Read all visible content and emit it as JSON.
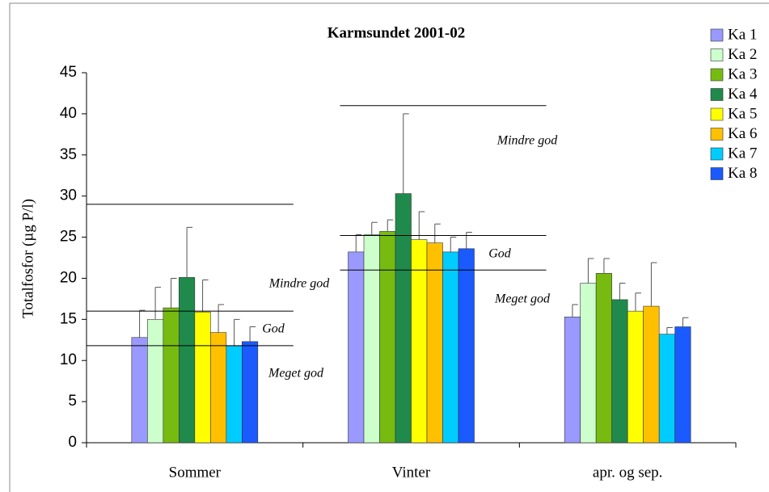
{
  "chart_data": {
    "type": "bar",
    "title": "Karmsundet 2001-02",
    "ylabel": "Totalfosfor (µg P/l)",
    "categories": [
      "Sommer",
      "Vinter",
      "apr. og sep."
    ],
    "ylim": [
      0,
      45
    ],
    "yticks": [
      0,
      5,
      10,
      15,
      20,
      25,
      30,
      35,
      40,
      45
    ],
    "series": [
      {
        "name": "Ka 1",
        "color": "#9999ff",
        "values": [
          12.8,
          23.2,
          15.3
        ],
        "errors": [
          3.3,
          2.1,
          1.5
        ]
      },
      {
        "name": "Ka 2",
        "color": "#ccffcc",
        "values": [
          15.0,
          25.3,
          19.4
        ],
        "errors": [
          3.9,
          1.5,
          3.0
        ]
      },
      {
        "name": "Ka 3",
        "color": "#77bb11",
        "values": [
          16.4,
          25.7,
          20.6
        ],
        "errors": [
          3.6,
          1.4,
          1.8
        ]
      },
      {
        "name": "Ka 4",
        "color": "#1f8a4c",
        "values": [
          20.1,
          30.3,
          17.4
        ],
        "errors": [
          6.1,
          9.7,
          2.0
        ]
      },
      {
        "name": "Ka 5",
        "color": "#ffff00",
        "values": [
          15.9,
          24.7,
          16.0
        ],
        "errors": [
          3.9,
          3.4,
          2.2
        ]
      },
      {
        "name": "Ka 6",
        "color": "#ffc000",
        "values": [
          13.4,
          24.3,
          16.6
        ],
        "errors": [
          3.4,
          2.3,
          5.3
        ]
      },
      {
        "name": "Ka 7",
        "color": "#00ccff",
        "values": [
          11.8,
          23.2,
          13.2
        ],
        "errors": [
          3.2,
          1.8,
          0.8
        ]
      },
      {
        "name": "Ka 8",
        "color": "#1a5aff",
        "values": [
          12.3,
          23.6,
          14.1
        ],
        "errors": [
          1.8,
          2.0,
          1.1
        ]
      }
    ],
    "reference_lines": [
      [
        29,
        16,
        11.8
      ],
      [
        41,
        25.2,
        21
      ],
      []
    ],
    "annotations": [
      [
        "Mindre god",
        "God",
        "Meget god"
      ],
      [
        "Mindre god",
        "God",
        "Meget god"
      ],
      []
    ]
  }
}
